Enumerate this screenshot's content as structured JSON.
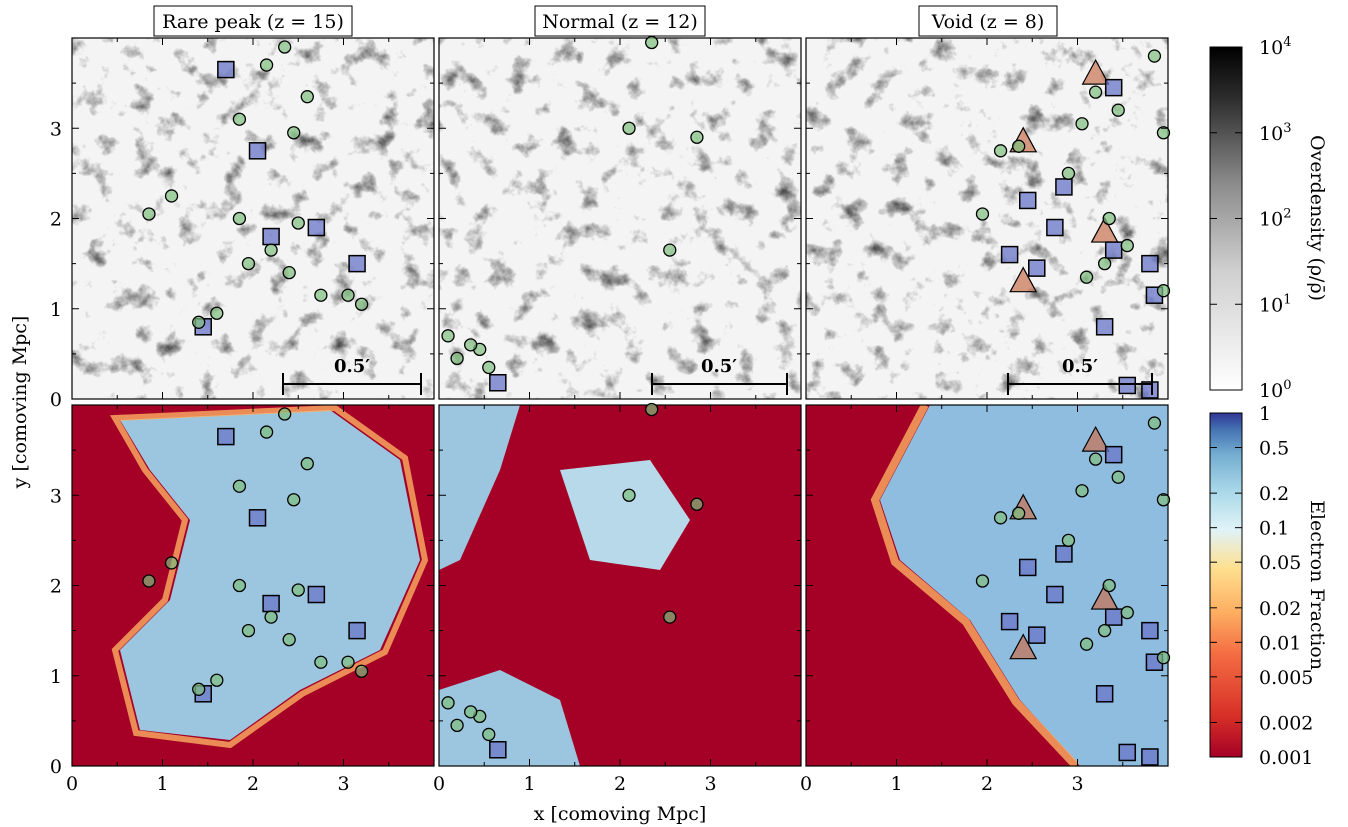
{
  "chart_data": {
    "type": "heatmap",
    "xlabel": "x [comoving Mpc]",
    "ylabel": "y [comoving Mpc]",
    "xlim": [
      0,
      4
    ],
    "ylim": [
      0,
      4
    ],
    "x_ticks": [
      "0",
      "1",
      "2",
      "3"
    ],
    "y_ticks": [
      "0",
      "1",
      "2",
      "3"
    ],
    "panels": [
      {
        "title": "Rare peak (z = 15)",
        "scale_bar": "0.5′"
      },
      {
        "title": "Normal (z = 12)",
        "scale_bar": "0.5′"
      },
      {
        "title": "Void (z = 8)",
        "scale_bar": "0.5′"
      }
    ],
    "rows": [
      {
        "quantity": "Overdensity",
        "colormap": "grey"
      },
      {
        "quantity": "Electron Fraction",
        "colormap": "RdYlBu"
      }
    ],
    "colorbars": [
      {
        "label": "Overdensity (ρ/ρ̄)",
        "scale": "log",
        "range": [
          1,
          10000
        ],
        "tick_labels": [
          [
            "10",
            "0"
          ],
          [
            "10",
            "1"
          ],
          [
            "10",
            "2"
          ],
          [
            "10",
            "3"
          ],
          [
            "10",
            "4"
          ]
        ]
      },
      {
        "label": "Electron Fraction",
        "scale": "log",
        "range": [
          0.001,
          1
        ],
        "tick_labels": [
          "0.001",
          "0.002",
          "0.005",
          "0.01",
          "0.02",
          "0.05",
          "0.1",
          "0.2",
          "0.5",
          "1"
        ]
      }
    ],
    "markers": [
      {
        "panel": 0,
        "shape": "square",
        "color": "#6a76c8",
        "points": [
          [
            1.7,
            3.65
          ],
          [
            2.05,
            2.75
          ],
          [
            2.7,
            1.9
          ],
          [
            3.15,
            1.5
          ],
          [
            2.2,
            1.8
          ],
          [
            1.45,
            0.8
          ]
        ]
      },
      {
        "panel": 0,
        "shape": "circle",
        "color": "#7fbf7f",
        "points": [
          [
            2.35,
            3.9
          ],
          [
            2.15,
            3.7
          ],
          [
            1.85,
            3.1
          ],
          [
            2.45,
            2.95
          ],
          [
            1.1,
            2.25
          ],
          [
            1.85,
            2.0
          ],
          [
            2.5,
            1.95
          ],
          [
            2.2,
            1.65
          ],
          [
            1.95,
            1.5
          ],
          [
            2.4,
            1.4
          ],
          [
            2.75,
            1.15
          ],
          [
            3.05,
            1.15
          ],
          [
            3.2,
            1.05
          ],
          [
            1.6,
            0.95
          ],
          [
            1.4,
            0.85
          ],
          [
            0.85,
            2.05
          ],
          [
            2.6,
            3.35
          ]
        ]
      },
      {
        "panel": 1,
        "shape": "square",
        "color": "#6a76c8",
        "points": [
          [
            0.65,
            0.18
          ]
        ]
      },
      {
        "panel": 1,
        "shape": "circle",
        "color": "#7fbf7f",
        "points": [
          [
            2.1,
            3.0
          ],
          [
            2.55,
            1.65
          ],
          [
            0.1,
            0.7
          ],
          [
            0.2,
            0.45
          ],
          [
            0.45,
            0.55
          ],
          [
            0.55,
            0.35
          ],
          [
            0.35,
            0.6
          ],
          [
            2.35,
            3.95
          ],
          [
            2.85,
            2.9
          ]
        ]
      },
      {
        "panel": 2,
        "shape": "triangle",
        "color": "#c87050",
        "points": [
          [
            3.2,
            3.6
          ],
          [
            2.4,
            2.85
          ],
          [
            3.3,
            1.85
          ],
          [
            2.4,
            1.3
          ]
        ]
      },
      {
        "panel": 2,
        "shape": "square",
        "color": "#6a76c8",
        "points": [
          [
            3.4,
            3.45
          ],
          [
            2.85,
            2.35
          ],
          [
            2.45,
            2.2
          ],
          [
            2.75,
            1.9
          ],
          [
            3.4,
            1.65
          ],
          [
            2.25,
            1.6
          ],
          [
            2.55,
            1.45
          ],
          [
            3.8,
            1.5
          ],
          [
            3.85,
            1.15
          ],
          [
            3.3,
            0.8
          ],
          [
            3.55,
            0.15
          ],
          [
            3.8,
            0.1
          ]
        ]
      },
      {
        "panel": 2,
        "shape": "circle",
        "color": "#7fbf7f",
        "points": [
          [
            2.15,
            2.75
          ],
          [
            2.35,
            2.8
          ],
          [
            3.2,
            3.4
          ],
          [
            3.05,
            3.05
          ],
          [
            3.85,
            3.8
          ],
          [
            3.95,
            2.95
          ],
          [
            3.45,
            3.2
          ],
          [
            2.9,
            2.5
          ],
          [
            1.95,
            2.05
          ],
          [
            3.35,
            2.0
          ],
          [
            3.55,
            1.7
          ],
          [
            3.1,
            1.35
          ],
          [
            3.3,
            1.5
          ],
          [
            3.95,
            1.2
          ]
        ]
      }
    ]
  }
}
